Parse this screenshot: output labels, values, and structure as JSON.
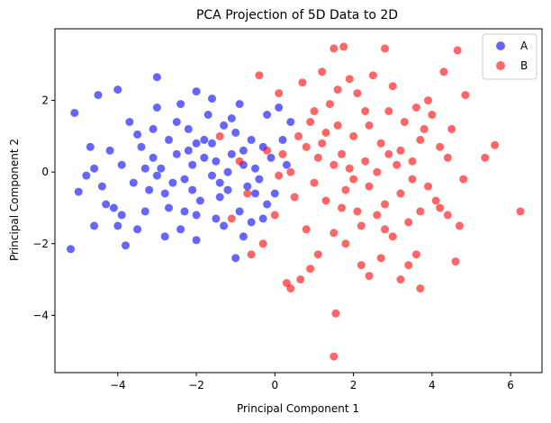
{
  "chart_data": {
    "type": "scatter",
    "title": "PCA Projection of 5D Data to 2D",
    "xlabel": "Principal Component 1",
    "ylabel": "Principal Component 2",
    "xlim": [
      -5.6,
      6.8
    ],
    "ylim": [
      -5.6,
      4.0
    ],
    "xticks": [
      -4,
      -2,
      0,
      2,
      4,
      6
    ],
    "yticks": [
      -4,
      -2,
      0,
      2
    ],
    "grid": false,
    "legend_position": "top-right",
    "series": [
      {
        "name": "A",
        "color": "#0000ff",
        "points": [
          [
            -5.1,
            1.65
          ],
          [
            -5.2,
            -2.15
          ],
          [
            -5.0,
            -0.55
          ],
          [
            -4.5,
            2.15
          ],
          [
            -4.0,
            2.3
          ],
          [
            -3.0,
            2.65
          ],
          [
            -2.0,
            2.25
          ],
          [
            -1.6,
            2.05
          ],
          [
            -4.6,
            0.1
          ],
          [
            -4.2,
            0.6
          ],
          [
            -4.3,
            -0.9
          ],
          [
            -4.0,
            -1.5
          ],
          [
            -3.8,
            -2.05
          ],
          [
            -3.5,
            1.05
          ],
          [
            -3.1,
            0.4
          ],
          [
            -2.8,
            -0.6
          ],
          [
            -2.5,
            1.4
          ],
          [
            -2.3,
            -0.2
          ],
          [
            -2.0,
            -1.2
          ],
          [
            -1.8,
            0.9
          ],
          [
            -1.5,
            0.3
          ],
          [
            -1.3,
            -1.5
          ],
          [
            -1.0,
            1.1
          ],
          [
            -0.8,
            0.2
          ],
          [
            -0.5,
            -0.6
          ],
          [
            -0.2,
            1.6
          ],
          [
            0.1,
            1.8
          ],
          [
            0.3,
            0.2
          ],
          [
            0.4,
            1.4
          ],
          [
            -3.6,
            -0.3
          ],
          [
            -3.3,
            -1.1
          ],
          [
            -3.0,
            1.8
          ],
          [
            -2.7,
            0.9
          ],
          [
            -2.4,
            -1.6
          ],
          [
            -2.2,
            0.6
          ],
          [
            -1.9,
            -0.8
          ],
          [
            -1.7,
            1.6
          ],
          [
            -1.4,
            -0.3
          ],
          [
            -1.1,
            0.5
          ],
          [
            -0.9,
            -1.1
          ],
          [
            -0.6,
            0.9
          ],
          [
            -0.4,
            -0.2
          ],
          [
            -0.1,
            0.4
          ],
          [
            -4.8,
            -0.1
          ],
          [
            -4.4,
            -0.4
          ],
          [
            -3.9,
            0.2
          ],
          [
            -3.4,
            0.7
          ],
          [
            -3.2,
            -0.5
          ],
          [
            -2.9,
            0.1
          ],
          [
            -2.6,
            -0.3
          ],
          [
            -2.1,
            0.2
          ],
          [
            -1.6,
            -0.1
          ],
          [
            -1.2,
            0.0
          ],
          [
            -0.7,
            -0.4
          ],
          [
            -0.3,
            0.7
          ],
          [
            -3.7,
            1.4
          ],
          [
            -2.4,
            1.9
          ],
          [
            -1.3,
            1.3
          ],
          [
            -0.9,
            1.9
          ],
          [
            -2.0,
            -1.9
          ],
          [
            -1.0,
            -2.4
          ],
          [
            -0.8,
            -1.8
          ],
          [
            -0.3,
            -1.3
          ],
          [
            -4.1,
            -1.0
          ],
          [
            -3.5,
            -1.6
          ],
          [
            -2.8,
            -1.8
          ],
          [
            -1.6,
            0.8
          ],
          [
            -2.2,
            1.2
          ],
          [
            -3.0,
            -0.1
          ],
          [
            -1.8,
            0.4
          ],
          [
            -2.5,
            0.5
          ],
          [
            -1.4,
            -0.7
          ],
          [
            -2.1,
            -0.5
          ],
          [
            -0.5,
            0.1
          ],
          [
            0.0,
            -0.6
          ],
          [
            0.2,
            0.9
          ],
          [
            -4.7,
            0.7
          ],
          [
            -4.6,
            -1.5
          ],
          [
            -3.3,
            0.1
          ],
          [
            -2.7,
            -1.0
          ],
          [
            -1.1,
            1.5
          ],
          [
            -0.2,
            -0.9
          ],
          [
            -3.9,
            -1.2
          ],
          [
            -1.5,
            -1.3
          ],
          [
            -2.3,
            -1.1
          ],
          [
            -0.6,
            -1.4
          ],
          [
            -3.1,
            1.2
          ],
          [
            -2.0,
            0.8
          ],
          [
            -1.2,
            -0.5
          ],
          [
            -0.8,
            0.6
          ]
        ]
      },
      {
        "name": "B",
        "color": "#ff0000",
        "points": [
          [
            1.5,
            3.45
          ],
          [
            1.75,
            3.5
          ],
          [
            2.8,
            3.45
          ],
          [
            4.65,
            3.4
          ],
          [
            1.5,
            -5.15
          ],
          [
            1.55,
            -3.95
          ],
          [
            6.25,
            -1.1
          ],
          [
            5.6,
            0.75
          ],
          [
            5.35,
            0.4
          ],
          [
            4.85,
            2.15
          ],
          [
            0.3,
            -3.1
          ],
          [
            0.4,
            -3.25
          ],
          [
            0.65,
            -3.0
          ],
          [
            2.4,
            -2.9
          ],
          [
            3.2,
            -3.0
          ],
          [
            3.7,
            -3.25
          ],
          [
            0.1,
            2.2
          ],
          [
            0.9,
            1.4
          ],
          [
            1.2,
            0.8
          ],
          [
            1.5,
            0.2
          ],
          [
            1.8,
            -0.5
          ],
          [
            2.0,
            1.0
          ],
          [
            2.3,
            0.3
          ],
          [
            2.6,
            -1.2
          ],
          [
            2.9,
            1.7
          ],
          [
            3.2,
            0.6
          ],
          [
            3.5,
            -0.2
          ],
          [
            3.8,
            1.2
          ],
          [
            4.1,
            -0.8
          ],
          [
            4.4,
            0.4
          ],
          [
            4.7,
            -1.5
          ],
          [
            0.5,
            -0.7
          ],
          [
            0.8,
            -1.6
          ],
          [
            1.1,
            -2.3
          ],
          [
            1.4,
            1.9
          ],
          [
            1.7,
            -1.0
          ],
          [
            2.1,
            2.2
          ],
          [
            2.4,
            -0.4
          ],
          [
            2.7,
            0.8
          ],
          [
            3.0,
            -1.8
          ],
          [
            3.3,
            1.4
          ],
          [
            3.6,
            -2.3
          ],
          [
            3.9,
            2.0
          ],
          [
            4.2,
            -1.0
          ],
          [
            0.2,
            0.5
          ],
          [
            0.6,
            1.0
          ],
          [
            1.0,
            -0.3
          ],
          [
            1.3,
            -0.8
          ],
          [
            1.6,
            1.3
          ],
          [
            1.9,
            0.1
          ],
          [
            2.2,
            -1.5
          ],
          [
            2.5,
            2.7
          ],
          [
            2.8,
            -0.9
          ],
          [
            3.1,
            0.2
          ],
          [
            3.4,
            -1.4
          ],
          [
            3.7,
            0.9
          ],
          [
            4.0,
            1.6
          ],
          [
            4.3,
            2.8
          ],
          [
            0.0,
            -1.2
          ],
          [
            -0.3,
            -2.0
          ],
          [
            -0.6,
            -2.3
          ],
          [
            -0.9,
            0.3
          ],
          [
            -1.1,
            -1.3
          ],
          [
            -1.4,
            1.0
          ],
          [
            -0.4,
            2.7
          ],
          [
            0.7,
            2.5
          ],
          [
            1.2,
            2.8
          ],
          [
            1.9,
            2.6
          ],
          [
            2.3,
            1.7
          ],
          [
            3.0,
            2.4
          ],
          [
            3.6,
            1.8
          ],
          [
            4.5,
            1.2
          ],
          [
            4.8,
            -0.2
          ],
          [
            0.9,
            -2.7
          ],
          [
            1.8,
            -2.0
          ],
          [
            2.2,
            -2.6
          ],
          [
            2.7,
            -2.4
          ],
          [
            3.4,
            -2.6
          ],
          [
            4.6,
            -2.5
          ],
          [
            1.1,
            0.4
          ],
          [
            1.5,
            -1.7
          ],
          [
            2.0,
            -0.2
          ],
          [
            2.6,
            0.0
          ],
          [
            3.2,
            -0.6
          ],
          [
            0.4,
            0.0
          ],
          [
            0.8,
            0.7
          ],
          [
            1.3,
            1.1
          ],
          [
            1.7,
            0.5
          ],
          [
            2.4,
            1.3
          ],
          [
            2.9,
            0.5
          ],
          [
            3.5,
            0.3
          ],
          [
            3.9,
            -0.4
          ],
          [
            4.2,
            0.7
          ],
          [
            0.1,
            -0.1
          ],
          [
            -0.2,
            0.6
          ],
          [
            -0.7,
            -0.6
          ],
          [
            1.0,
            1.7
          ],
          [
            2.1,
            -1.1
          ],
          [
            2.8,
            -1.6
          ],
          [
            3.7,
            -1.1
          ],
          [
            4.4,
            -1.2
          ],
          [
            1.6,
            2.3
          ]
        ]
      }
    ]
  }
}
